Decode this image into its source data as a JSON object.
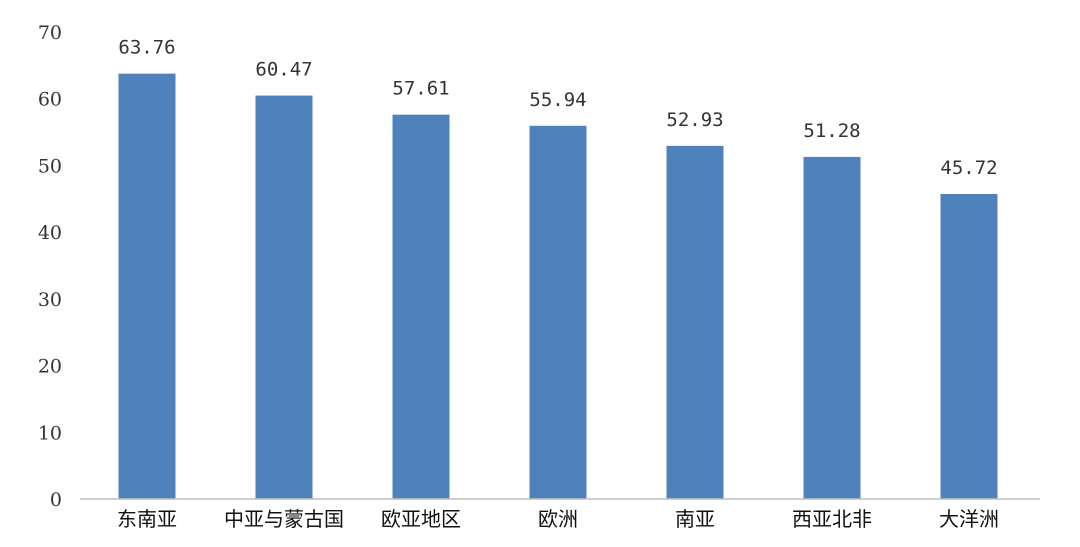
{
  "chart_data": {
    "type": "bar",
    "categories": [
      "东南亚",
      "中亚与蒙古国",
      "欧亚地区",
      "欧洲",
      "南亚",
      "西亚北非",
      "大洋洲"
    ],
    "values": [
      63.76,
      60.47,
      57.61,
      55.94,
      52.93,
      51.28,
      45.72
    ],
    "value_labels": [
      "63.76",
      "60.47",
      "57.61",
      "55.94",
      "52.93",
      "51.28",
      "45.72"
    ],
    "ylim": [
      0,
      70
    ],
    "yticks": [
      0,
      10,
      20,
      30,
      40,
      50,
      60,
      70
    ],
    "ytick_labels": [
      "0",
      "10",
      "20",
      "30",
      "40",
      "50",
      "60",
      "70"
    ],
    "bar_color": "#4f81bd",
    "grid": false,
    "legend": "none"
  }
}
